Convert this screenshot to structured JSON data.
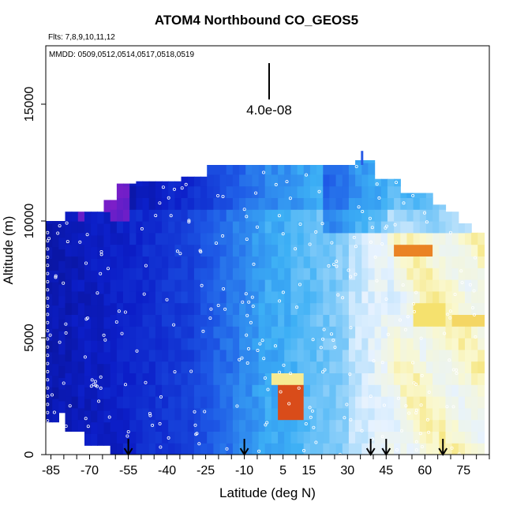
{
  "chart_data": {
    "type": "heatmap",
    "title": "ATOM4 Northbound CO_GEOS5",
    "flights_label": "Flts: 7,8,9,10,11,12",
    "mmdd_label": "MMDD: 0509,0512,0514,0517,0518,0519",
    "xlabel": "Latitude (deg N)",
    "ylabel": "Altitude (m)",
    "xlim": [
      -87,
      85
    ],
    "ylim": [
      0,
      17500
    ],
    "x_ticks": [
      -85,
      -70,
      -55,
      -40,
      -25,
      -10,
      5,
      15,
      30,
      45,
      60,
      75
    ],
    "y_ticks": [
      0,
      5000,
      10000,
      15000
    ],
    "scale_bar_label": "4.0e-08",
    "arrow_latitudes": [
      -55,
      -10,
      39,
      45,
      67
    ],
    "colors": {
      "low": "#0a1aa0",
      "mid": "#3cb4f0",
      "light": "#e8f4ff",
      "high": "#f5e070",
      "peak": "#d42010",
      "purple": "#6a2ad0",
      "points": "#ffffff"
    }
  }
}
